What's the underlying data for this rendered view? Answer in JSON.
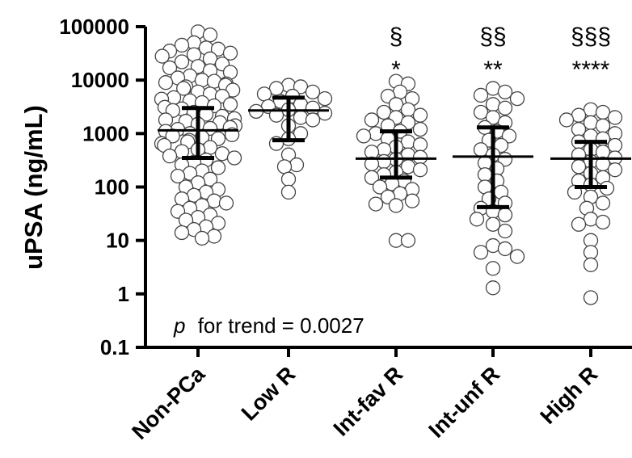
{
  "chart_data": {
    "type": "scatter",
    "ylabel": "uPSA (ng/mL)",
    "yscale": "log",
    "ylim": [
      0.1,
      100000
    ],
    "yticks": [
      "0.1",
      "1",
      "10",
      "100",
      "1000",
      "10000",
      "100000"
    ],
    "ytick_values": [
      0.1,
      1,
      10,
      100,
      1000,
      10000,
      100000
    ],
    "categories": [
      "Non-PCa",
      "Low R",
      "Int-fav R",
      "Int-unf R",
      "High R"
    ],
    "marker": "open-circle",
    "annotation_prefix": "p",
    "annotation_rest": "for trend = 0.0027",
    "groups": [
      {
        "category": "Non-PCa",
        "median": 1150,
        "q1": 350,
        "q3": 3000,
        "sig_top": "",
        "sig_bottom": "",
        "points": [
          80000,
          70000,
          50000,
          45000,
          40000,
          38000,
          35000,
          32000,
          30000,
          28000,
          25000,
          22000,
          20000,
          18000,
          17000,
          15000,
          14000,
          12000,
          11000,
          10000,
          9500,
          9000,
          8500,
          8000,
          7500,
          7000,
          6500,
          6000,
          5500,
          5000,
          4700,
          4400,
          4100,
          3800,
          3500,
          3300,
          3100,
          2900,
          2700,
          2500,
          2300,
          2100,
          1900,
          1800,
          1700,
          1600,
          1500,
          1400,
          1300,
          1250,
          1200,
          1100,
          1000,
          950,
          900,
          850,
          800,
          750,
          700,
          650,
          600,
          550,
          500,
          460,
          420,
          380,
          350,
          320,
          290,
          260,
          230,
          200,
          180,
          160,
          140,
          120,
          100,
          90,
          80,
          70,
          60,
          55,
          50,
          45,
          40,
          35,
          30,
          27,
          24,
          21,
          18,
          16,
          14,
          12,
          11
        ]
      },
      {
        "category": "Low R",
        "median": 2700,
        "q1": 750,
        "q3": 4700,
        "sig_top": "",
        "sig_bottom": "",
        "points": [
          8000,
          7500,
          7000,
          6000,
          5500,
          5000,
          4500,
          4000,
          3500,
          3200,
          3000,
          2800,
          2600,
          2400,
          2200,
          2000,
          1800,
          1400,
          1000,
          800,
          650,
          400,
          260,
          240,
          140,
          80
        ]
      },
      {
        "category": "Int-fav R",
        "median": 340,
        "q1": 150,
        "q3": 1100,
        "sig_top": "§",
        "sig_bottom": "*",
        "points": [
          9500,
          8500,
          6000,
          5000,
          4500,
          3500,
          2800,
          2500,
          2200,
          2000,
          1800,
          1600,
          1400,
          1200,
          1100,
          1000,
          900,
          800,
          700,
          620,
          560,
          500,
          450,
          400,
          360,
          330,
          300,
          270,
          240,
          210,
          190,
          170,
          150,
          130,
          115,
          100,
          90,
          75,
          65,
          55,
          48,
          45,
          10,
          10
        ]
      },
      {
        "category": "Int-unf R",
        "median": 370,
        "q1": 42,
        "q3": 1300,
        "sig_top": "§§",
        "sig_bottom": "**",
        "points": [
          7000,
          6000,
          5200,
          4500,
          3500,
          3000,
          2500,
          2000,
          1600,
          1300,
          1100,
          900,
          750,
          600,
          500,
          400,
          330,
          280,
          220,
          170,
          130,
          100,
          80,
          60,
          50,
          40,
          35,
          30,
          25,
          20,
          15,
          8,
          7,
          6,
          5,
          3,
          1.3
        ]
      },
      {
        "category": "High R",
        "median": 340,
        "q1": 100,
        "q3": 700,
        "sig_top": "§§§",
        "sig_bottom": "****",
        "points": [
          2800,
          2500,
          2200,
          2000,
          1800,
          1600,
          1400,
          1200,
          1000,
          900,
          800,
          700,
          600,
          500,
          450,
          400,
          350,
          300,
          270,
          240,
          210,
          180,
          150,
          130,
          110,
          95,
          80,
          65,
          50,
          40,
          25,
          22,
          20,
          10,
          6,
          3.5,
          0.85
        ]
      }
    ]
  }
}
